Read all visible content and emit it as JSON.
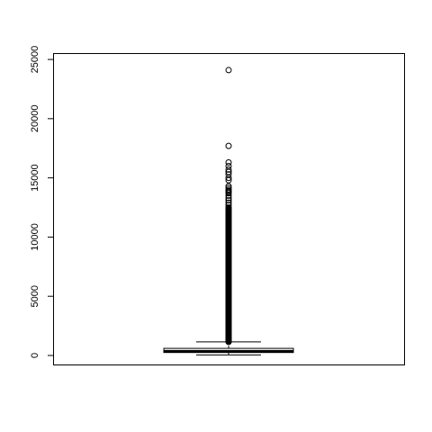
{
  "chart_data": {
    "type": "boxplot",
    "title": "",
    "xlabel": "",
    "ylabel": "",
    "ylim": [
      -800,
      25500
    ],
    "y_ticks": [
      0,
      5000,
      10000,
      15000,
      20000,
      25000
    ],
    "y_tick_labels": [
      "0",
      "5000",
      "10000",
      "15000",
      "20000",
      "25000"
    ],
    "grid": false,
    "box": {
      "min": 50,
      "q1": 250,
      "median": 350,
      "q3": 600,
      "whisker_high": 1150
    },
    "outliers_continuous_range": [
      1150,
      12500
    ],
    "outliers": [
      12700,
      12900,
      13100,
      13300,
      13500,
      13700,
      13800,
      13900,
      14000,
      14150,
      14300,
      14800,
      15000,
      15300,
      15500,
      15700,
      16000,
      16300,
      17700,
      24100
    ]
  }
}
